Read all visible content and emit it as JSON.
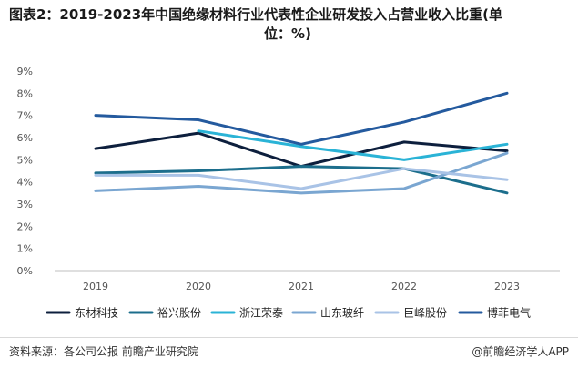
{
  "title_line1": "图表2：2019-2023年中国绝缘材料行业代表性企业研发投入占营业收入比重(单",
  "title_line2": "位：%)",
  "source": "资料来源：各公司公报 前瞻产业研究院",
  "brand": "@前瞻经济学人APP",
  "chart_data": {
    "type": "line",
    "categories": [
      "2019",
      "2020",
      "2021",
      "2022",
      "2023"
    ],
    "yticks": [
      "0%",
      "1%",
      "2%",
      "3%",
      "4%",
      "5%",
      "6%",
      "7%",
      "8%",
      "9%"
    ],
    "ylim": [
      0,
      9
    ],
    "grid": false,
    "legend_position": "bottom",
    "series": [
      {
        "name": "东材科技",
        "color": "#0d1f3d",
        "values": [
          5.5,
          6.2,
          4.7,
          5.8,
          5.4
        ]
      },
      {
        "name": "裕兴股份",
        "color": "#1c6e8c",
        "values": [
          4.4,
          4.5,
          4.7,
          4.6,
          3.5
        ]
      },
      {
        "name": "浙江荣泰",
        "color": "#2ab3d6",
        "values": [
          null,
          6.3,
          5.6,
          5.0,
          5.7
        ]
      },
      {
        "name": "山东玻纤",
        "color": "#7aa6d1",
        "values": [
          3.6,
          3.8,
          3.5,
          3.7,
          5.3
        ]
      },
      {
        "name": "巨峰股份",
        "color": "#a9c3e6",
        "values": [
          4.3,
          4.3,
          3.7,
          4.6,
          4.1
        ]
      },
      {
        "name": "博菲电气",
        "color": "#245a9e",
        "values": [
          7.0,
          6.8,
          5.7,
          6.7,
          8.0
        ]
      }
    ]
  }
}
